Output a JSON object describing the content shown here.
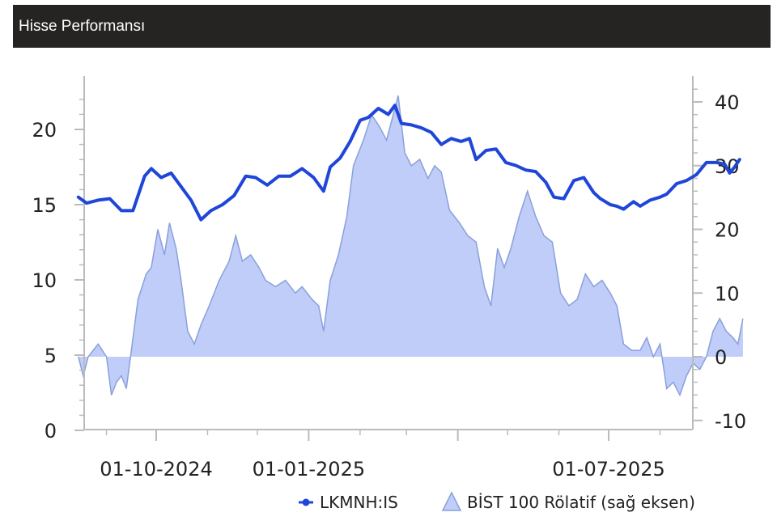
{
  "header": {
    "title": "Hisse Performansı"
  },
  "colors": {
    "line": "#1f45d9",
    "area_fill": "#bfcdf8",
    "area_stroke": "#8aa0dc",
    "header_bg": "#262422",
    "axis": "#bbbbbb"
  },
  "chart_data": {
    "type": "line",
    "title": "Hisse Performansı",
    "x_tick_labels": [
      "01-10-2024",
      "01-01-2025",
      "01-07-2025"
    ],
    "x_tick_dates": [
      "2024-10-01",
      "2025-01-01",
      "2025-07-01"
    ],
    "y_left": {
      "ticks": [
        0,
        5,
        10,
        15,
        20
      ],
      "range": [
        0,
        23
      ]
    },
    "y_right": {
      "ticks": [
        -10,
        0,
        10,
        20,
        30,
        40
      ],
      "range": [
        -11,
        42
      ]
    },
    "grid": false,
    "legend_position": "bottom-right",
    "series": [
      {
        "name": "LKMNH:IS",
        "axis": "left",
        "kind": "line",
        "points": [
          [
            "2024-08-15",
            15.5
          ],
          [
            "2024-08-20",
            15.1
          ],
          [
            "2024-08-27",
            15.3
          ],
          [
            "2024-09-03",
            15.4
          ],
          [
            "2024-09-10",
            14.6
          ],
          [
            "2024-09-17",
            14.6
          ],
          [
            "2024-09-24",
            16.9
          ],
          [
            "2024-09-28",
            17.4
          ],
          [
            "2024-10-04",
            16.8
          ],
          [
            "2024-10-10",
            17.1
          ],
          [
            "2024-10-16",
            16.2
          ],
          [
            "2024-10-22",
            15.3
          ],
          [
            "2024-10-28",
            14.0
          ],
          [
            "2024-11-03",
            14.6
          ],
          [
            "2024-11-10",
            15.0
          ],
          [
            "2024-11-17",
            15.6
          ],
          [
            "2024-11-24",
            16.9
          ],
          [
            "2024-11-30",
            16.8
          ],
          [
            "2024-12-07",
            16.3
          ],
          [
            "2024-12-14",
            16.9
          ],
          [
            "2024-12-21",
            16.9
          ],
          [
            "2024-12-28",
            17.4
          ],
          [
            "2025-01-04",
            16.8
          ],
          [
            "2025-01-10",
            15.9
          ],
          [
            "2025-01-14",
            17.5
          ],
          [
            "2025-01-20",
            18.1
          ],
          [
            "2025-01-26",
            19.2
          ],
          [
            "2025-02-01",
            20.6
          ],
          [
            "2025-02-06",
            20.8
          ],
          [
            "2025-02-12",
            21.4
          ],
          [
            "2025-02-18",
            21.0
          ],
          [
            "2025-02-22",
            21.6
          ],
          [
            "2025-02-26",
            20.4
          ],
          [
            "2025-03-04",
            20.3
          ],
          [
            "2025-03-10",
            20.1
          ],
          [
            "2025-03-16",
            19.8
          ],
          [
            "2025-03-22",
            19.0
          ],
          [
            "2025-03-28",
            19.4
          ],
          [
            "2025-04-03",
            19.2
          ],
          [
            "2025-04-08",
            19.4
          ],
          [
            "2025-04-12",
            18.0
          ],
          [
            "2025-04-18",
            18.6
          ],
          [
            "2025-04-24",
            18.7
          ],
          [
            "2025-04-30",
            17.8
          ],
          [
            "2025-05-06",
            17.6
          ],
          [
            "2025-05-12",
            17.3
          ],
          [
            "2025-05-18",
            17.2
          ],
          [
            "2025-05-24",
            16.5
          ],
          [
            "2025-05-29",
            15.5
          ],
          [
            "2025-06-04",
            15.4
          ],
          [
            "2025-06-10",
            16.6
          ],
          [
            "2025-06-16",
            16.8
          ],
          [
            "2025-06-22",
            15.8
          ],
          [
            "2025-06-26",
            15.4
          ],
          [
            "2025-07-02",
            15.0
          ],
          [
            "2025-07-06",
            14.9
          ],
          [
            "2025-07-10",
            14.7
          ],
          [
            "2025-07-16",
            15.2
          ],
          [
            "2025-07-20",
            14.9
          ],
          [
            "2025-07-26",
            15.3
          ],
          [
            "2025-08-01",
            15.5
          ],
          [
            "2025-08-05",
            15.7
          ],
          [
            "2025-08-11",
            16.4
          ],
          [
            "2025-08-17",
            16.6
          ],
          [
            "2025-08-23",
            17.0
          ],
          [
            "2025-08-29",
            17.8
          ],
          [
            "2025-09-04",
            17.8
          ],
          [
            "2025-09-09",
            17.7
          ],
          [
            "2025-09-12",
            17.1
          ],
          [
            "2025-09-15",
            17.5
          ],
          [
            "2025-09-18",
            18.0
          ]
        ]
      },
      {
        "name": "BİST 100 Rölatif (sağ eksen)",
        "axis": "right",
        "kind": "area",
        "points": [
          [
            "2024-08-15",
            0
          ],
          [
            "2024-08-18",
            -3
          ],
          [
            "2024-08-21",
            0
          ],
          [
            "2024-08-27",
            2
          ],
          [
            "2024-09-01",
            0
          ],
          [
            "2024-09-04",
            -6
          ],
          [
            "2024-09-07",
            -4
          ],
          [
            "2024-09-10",
            -3
          ],
          [
            "2024-09-13",
            -5
          ],
          [
            "2024-09-16",
            1
          ],
          [
            "2024-09-20",
            9
          ],
          [
            "2024-09-25",
            13
          ],
          [
            "2024-09-28",
            14
          ],
          [
            "2024-10-02",
            20
          ],
          [
            "2024-10-06",
            16
          ],
          [
            "2024-10-09",
            21
          ],
          [
            "2024-10-13",
            17
          ],
          [
            "2024-10-16",
            12
          ],
          [
            "2024-10-20",
            4
          ],
          [
            "2024-10-24",
            2
          ],
          [
            "2024-10-28",
            5
          ],
          [
            "2024-11-02",
            8
          ],
          [
            "2024-11-08",
            12
          ],
          [
            "2024-11-14",
            15
          ],
          [
            "2024-11-18",
            19
          ],
          [
            "2024-11-22",
            15
          ],
          [
            "2024-11-27",
            16
          ],
          [
            "2024-12-02",
            14
          ],
          [
            "2024-12-06",
            12
          ],
          [
            "2024-12-12",
            11
          ],
          [
            "2024-12-18",
            12
          ],
          [
            "2024-12-24",
            10
          ],
          [
            "2024-12-28",
            11
          ],
          [
            "2025-01-03",
            9
          ],
          [
            "2025-01-07",
            8
          ],
          [
            "2025-01-10",
            4
          ],
          [
            "2025-01-14",
            12
          ],
          [
            "2025-01-19",
            16
          ],
          [
            "2025-01-24",
            22
          ],
          [
            "2025-01-28",
            30
          ],
          [
            "2025-02-03",
            34
          ],
          [
            "2025-02-08",
            38
          ],
          [
            "2025-02-13",
            36
          ],
          [
            "2025-02-17",
            34
          ],
          [
            "2025-02-21",
            38
          ],
          [
            "2025-02-24",
            41
          ],
          [
            "2025-02-28",
            32
          ],
          [
            "2025-03-04",
            30
          ],
          [
            "2025-03-09",
            31
          ],
          [
            "2025-03-14",
            28
          ],
          [
            "2025-03-18",
            30
          ],
          [
            "2025-03-22",
            29
          ],
          [
            "2025-03-27",
            23
          ],
          [
            "2025-04-02",
            21
          ],
          [
            "2025-04-07",
            19
          ],
          [
            "2025-04-12",
            18
          ],
          [
            "2025-04-17",
            11
          ],
          [
            "2025-04-21",
            8
          ],
          [
            "2025-04-25",
            17
          ],
          [
            "2025-04-29",
            14
          ],
          [
            "2025-05-03",
            17
          ],
          [
            "2025-05-08",
            22
          ],
          [
            "2025-05-13",
            26
          ],
          [
            "2025-05-18",
            22
          ],
          [
            "2025-05-23",
            19
          ],
          [
            "2025-05-28",
            18
          ],
          [
            "2025-06-02",
            10
          ],
          [
            "2025-06-07",
            8
          ],
          [
            "2025-06-12",
            9
          ],
          [
            "2025-06-17",
            13
          ],
          [
            "2025-06-22",
            11
          ],
          [
            "2025-06-27",
            12
          ],
          [
            "2025-07-02",
            10
          ],
          [
            "2025-07-06",
            8
          ],
          [
            "2025-07-10",
            2
          ],
          [
            "2025-07-15",
            1
          ],
          [
            "2025-07-20",
            1
          ],
          [
            "2025-07-24",
            3
          ],
          [
            "2025-07-28",
            0
          ],
          [
            "2025-08-01",
            2
          ],
          [
            "2025-08-05",
            -5
          ],
          [
            "2025-08-09",
            -4
          ],
          [
            "2025-08-13",
            -6
          ],
          [
            "2025-08-17",
            -3
          ],
          [
            "2025-08-21",
            -1
          ],
          [
            "2025-08-25",
            -2
          ],
          [
            "2025-08-29",
            0
          ],
          [
            "2025-09-02",
            4
          ],
          [
            "2025-09-06",
            6
          ],
          [
            "2025-09-10",
            4
          ],
          [
            "2025-09-14",
            3
          ],
          [
            "2025-09-17",
            2
          ],
          [
            "2025-09-20",
            6
          ]
        ]
      }
    ]
  }
}
